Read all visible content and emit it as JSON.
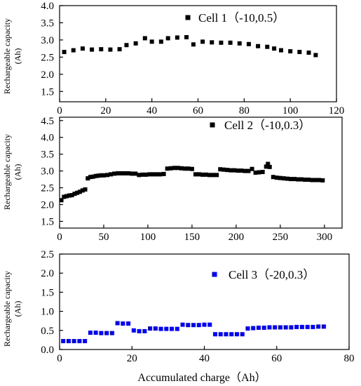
{
  "chart_data": [
    {
      "type": "scatter",
      "legend_position": "top-right",
      "ylabel": "Rechargeable capacity\n(Ah)",
      "xlabel": "",
      "xlim": [
        0,
        120
      ],
      "ylim": [
        1.2,
        4.0
      ],
      "x_ticks": [
        0,
        20,
        40,
        60,
        80,
        100,
        120
      ],
      "y_ticks": [
        1.5,
        2.0,
        2.5,
        3.0,
        3.5,
        4.0
      ],
      "series": [
        {
          "name": "Cell 1（-10,0.5）",
          "color": "#000000",
          "x": [
            2,
            6,
            10,
            14,
            18,
            22,
            26,
            29,
            33,
            37,
            40,
            44,
            47,
            51,
            55,
            58,
            62,
            66,
            70,
            74,
            78,
            82,
            86,
            90,
            93,
            96,
            100,
            104,
            108,
            111
          ],
          "y": [
            2.65,
            2.7,
            2.75,
            2.72,
            2.73,
            2.72,
            2.73,
            2.85,
            2.9,
            3.05,
            2.95,
            2.95,
            3.05,
            3.07,
            3.08,
            2.87,
            2.95,
            2.93,
            2.92,
            2.92,
            2.9,
            2.88,
            2.82,
            2.8,
            2.75,
            2.7,
            2.67,
            2.65,
            2.63,
            2.56
          ]
        }
      ]
    },
    {
      "type": "scatter",
      "legend_position": "top-right",
      "ylabel": "Rechargeable capacity\n(Ah)",
      "xlabel": "",
      "xlim": [
        0,
        320
      ],
      "ylim": [
        1.3,
        4.6
      ],
      "x_ticks": [
        0,
        50,
        100,
        150,
        200,
        250,
        300
      ],
      "y_ticks": [
        1.5,
        2.0,
        2.5,
        3.0,
        3.5,
        4.0,
        4.5
      ],
      "series": [
        {
          "name": "Cell 2（-10,0.3）",
          "color": "#000000",
          "x": [
            2,
            5,
            8,
            11,
            14,
            17,
            20,
            23,
            26,
            29,
            32,
            35,
            38,
            41,
            44,
            47,
            50,
            54,
            58,
            62,
            66,
            70,
            74,
            78,
            82,
            86,
            90,
            94,
            98,
            102,
            106,
            110,
            114,
            118,
            122,
            126,
            130,
            134,
            138,
            142,
            146,
            150,
            154,
            158,
            162,
            166,
            170,
            174,
            178,
            182,
            186,
            190,
            194,
            198,
            202,
            206,
            210,
            214,
            218,
            222,
            226,
            230,
            234,
            236,
            238,
            242,
            246,
            250,
            254,
            258,
            262,
            266,
            270,
            274,
            278,
            282,
            286,
            290,
            294,
            298
          ],
          "y": [
            2.13,
            2.23,
            2.25,
            2.27,
            2.28,
            2.32,
            2.35,
            2.38,
            2.42,
            2.45,
            2.78,
            2.82,
            2.83,
            2.85,
            2.86,
            2.87,
            2.87,
            2.88,
            2.9,
            2.92,
            2.93,
            2.93,
            2.93,
            2.93,
            2.92,
            2.92,
            2.88,
            2.89,
            2.89,
            2.9,
            2.9,
            2.9,
            2.9,
            2.91,
            3.07,
            3.08,
            3.09,
            3.09,
            3.08,
            3.07,
            3.07,
            3.06,
            2.9,
            2.9,
            2.89,
            2.89,
            2.88,
            2.88,
            2.88,
            3.05,
            3.04,
            3.03,
            3.02,
            3.02,
            3.01,
            3.01,
            3.0,
            3.0,
            3.06,
            2.95,
            2.96,
            2.97,
            3.13,
            3.21,
            3.12,
            2.82,
            2.8,
            2.79,
            2.78,
            2.77,
            2.76,
            2.76,
            2.75,
            2.75,
            2.74,
            2.74,
            2.73,
            2.73,
            2.73,
            2.72
          ]
        }
      ]
    },
    {
      "type": "scatter",
      "legend_position": "top-right",
      "ylabel": "Rechargeable capacity\n(Ah)",
      "xlabel": "Accumulated charge（Ah）",
      "xlim": [
        0,
        80
      ],
      "ylim": [
        0,
        2.5
      ],
      "x_ticks": [
        0,
        20,
        40,
        60,
        80
      ],
      "y_ticks": [
        0.0,
        0.5,
        1.0,
        1.5,
        2.0,
        2.5
      ],
      "series": [
        {
          "name": "Cell 3（-20,0.3）",
          "color": "#0000ff",
          "x": [
            1,
            2.5,
            4,
            5.5,
            7,
            8.5,
            10,
            11.5,
            13,
            14.5,
            16,
            17.5,
            19,
            20.5,
            22,
            23.5,
            25,
            26.5,
            28,
            29.5,
            31,
            32.5,
            34,
            35.5,
            37,
            38.5,
            40,
            41.5,
            43,
            44.5,
            46,
            47.5,
            49,
            50.5,
            52,
            53.5,
            55,
            56.5,
            58,
            59.5,
            61,
            62.5,
            64,
            65.5,
            67,
            68.5,
            70,
            71.5,
            73
          ],
          "y": [
            0.22,
            0.22,
            0.22,
            0.22,
            0.22,
            0.44,
            0.44,
            0.43,
            0.43,
            0.43,
            0.69,
            0.68,
            0.68,
            0.5,
            0.48,
            0.48,
            0.55,
            0.55,
            0.54,
            0.54,
            0.54,
            0.54,
            0.65,
            0.64,
            0.64,
            0.64,
            0.65,
            0.65,
            0.4,
            0.4,
            0.4,
            0.4,
            0.4,
            0.4,
            0.55,
            0.56,
            0.57,
            0.57,
            0.58,
            0.58,
            0.58,
            0.58,
            0.58,
            0.59,
            0.59,
            0.59,
            0.59,
            0.6,
            0.6
          ]
        }
      ]
    }
  ]
}
